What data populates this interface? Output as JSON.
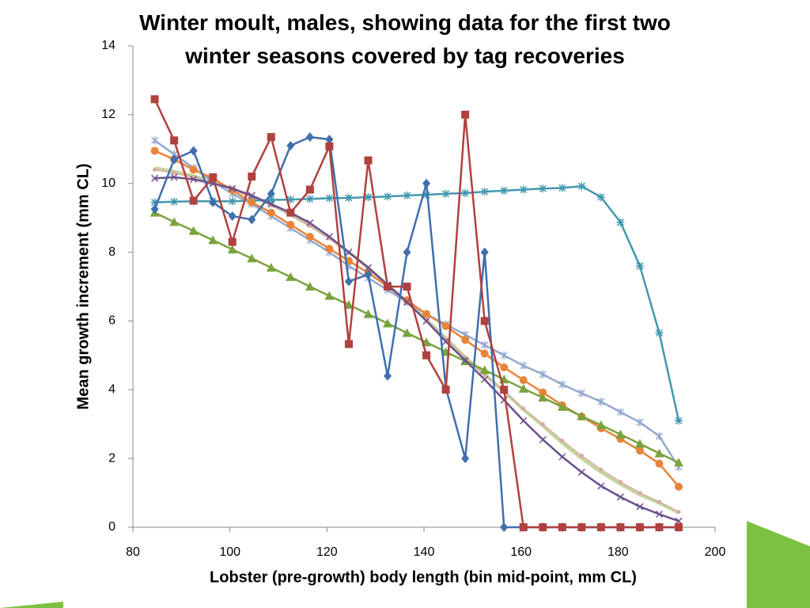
{
  "chart_data": {
    "type": "line",
    "title": "Winter moult, males, showing data for the first two winter seasons covered by tag recoveries",
    "xlabel": "Lobster (pre-growth) body length (bin mid-point, mm CL)",
    "ylabel": "Mean growth increment (mm CL)",
    "x": [
      84.5,
      88.5,
      92.5,
      96.5,
      100.5,
      104.5,
      108.5,
      112.5,
      116.5,
      120.5,
      124.5,
      128.5,
      132.5,
      136.5,
      140.5,
      144.5,
      148.5,
      152.5,
      156.5,
      160.5,
      164.5,
      168.5,
      172.5,
      176.5,
      180.5,
      184.5,
      188.5,
      192.5
    ],
    "xlim": [
      80,
      200
    ],
    "xticks": [
      80,
      100,
      120,
      140,
      160,
      180,
      200
    ],
    "ylim": [
      0,
      14
    ],
    "yticks": [
      0,
      2,
      4,
      6,
      8,
      10,
      12,
      14
    ],
    "series": [
      {
        "color": "#c3d69b",
        "marker": "none",
        "width": 4,
        "values": [
          10.45,
          10.35,
          10.22,
          10.05,
          9.85,
          9.62,
          9.38,
          9.1,
          8.78,
          8.42,
          8.0,
          7.55,
          7.05,
          6.55,
          6.05,
          5.5,
          4.95,
          4.45,
          3.95,
          3.42,
          2.95,
          2.45,
          2.0,
          1.6,
          1.25,
          0.95,
          0.7,
          0.42
        ]
      },
      {
        "color": "#d9a9a0",
        "marker": "dot",
        "width": 1.5,
        "values": [
          10.4,
          10.3,
          10.18,
          10.02,
          9.82,
          9.6,
          9.36,
          9.08,
          8.76,
          8.4,
          7.98,
          7.52,
          7.02,
          6.52,
          6.02,
          5.48,
          4.93,
          4.43,
          3.95,
          3.45,
          3.0,
          2.52,
          2.08,
          1.68,
          1.32,
          1.0,
          0.74,
          0.45
        ]
      },
      {
        "color": "#4198af",
        "marker": "star",
        "width": 2.5,
        "values": [
          9.45,
          9.47,
          9.48,
          9.48,
          9.48,
          9.5,
          9.52,
          9.53,
          9.55,
          9.57,
          9.58,
          9.6,
          9.62,
          9.65,
          9.67,
          9.7,
          9.72,
          9.76,
          9.79,
          9.82,
          9.85,
          9.87,
          9.92,
          9.6,
          8.87,
          7.6,
          5.65,
          3.1
        ]
      },
      {
        "color": "#93a9cf",
        "marker": "cross",
        "width": 2.5,
        "values": [
          11.25,
          10.85,
          10.45,
          10.05,
          9.7,
          9.4,
          9.05,
          8.7,
          8.35,
          8.0,
          7.6,
          7.25,
          6.9,
          6.55,
          6.2,
          5.9,
          5.6,
          5.3,
          5.0,
          4.7,
          4.45,
          4.15,
          3.9,
          3.65,
          3.35,
          3.05,
          2.65,
          1.75
        ]
      },
      {
        "color": "#e8843a",
        "marker": "circle",
        "width": 2.5,
        "values": [
          10.95,
          10.7,
          10.4,
          10.15,
          9.8,
          9.45,
          9.15,
          8.8,
          8.45,
          8.1,
          7.75,
          7.4,
          7.0,
          6.6,
          6.2,
          5.85,
          5.45,
          5.05,
          4.65,
          4.28,
          3.92,
          3.55,
          3.22,
          2.88,
          2.57,
          2.23,
          1.85,
          1.18
        ]
      },
      {
        "color": "#7aa33e",
        "marker": "triangle",
        "width": 2.5,
        "values": [
          9.15,
          8.88,
          8.62,
          8.35,
          8.08,
          7.82,
          7.55,
          7.28,
          7.0,
          6.73,
          6.47,
          6.2,
          5.93,
          5.65,
          5.38,
          5.1,
          4.83,
          4.57,
          4.3,
          4.03,
          3.77,
          3.5,
          3.23,
          2.97,
          2.7,
          2.43,
          2.15,
          1.88
        ]
      },
      {
        "color": "#6b4f8f",
        "marker": "x",
        "width": 2.5,
        "values": [
          10.15,
          10.18,
          10.12,
          10.0,
          9.85,
          9.65,
          9.4,
          9.15,
          8.85,
          8.45,
          8.0,
          7.55,
          7.05,
          6.55,
          6.0,
          5.4,
          4.85,
          4.3,
          3.7,
          3.1,
          2.55,
          2.05,
          1.6,
          1.2,
          0.88,
          0.6,
          0.38,
          0.18
        ]
      },
      {
        "color": "#3f6fae",
        "marker": "diamond",
        "width": 2.5,
        "values": [
          9.25,
          10.7,
          10.95,
          9.45,
          9.05,
          8.95,
          9.7,
          11.1,
          11.35,
          11.28,
          7.15,
          7.35,
          4.4,
          8.0,
          10.0,
          4.05,
          2.0,
          8.0,
          0,
          0,
          0,
          0,
          0,
          0,
          0,
          0,
          0,
          0
        ]
      },
      {
        "color": "#b0413e",
        "marker": "square",
        "width": 2.5,
        "values": [
          12.45,
          11.25,
          9.5,
          10.18,
          8.3,
          10.2,
          11.35,
          9.15,
          9.82,
          11.08,
          5.33,
          10.67,
          7.0,
          7.0,
          5.0,
          4.0,
          12.0,
          6.0,
          4.0,
          0,
          0,
          0,
          0,
          0,
          0,
          0,
          0,
          0
        ]
      }
    ]
  }
}
